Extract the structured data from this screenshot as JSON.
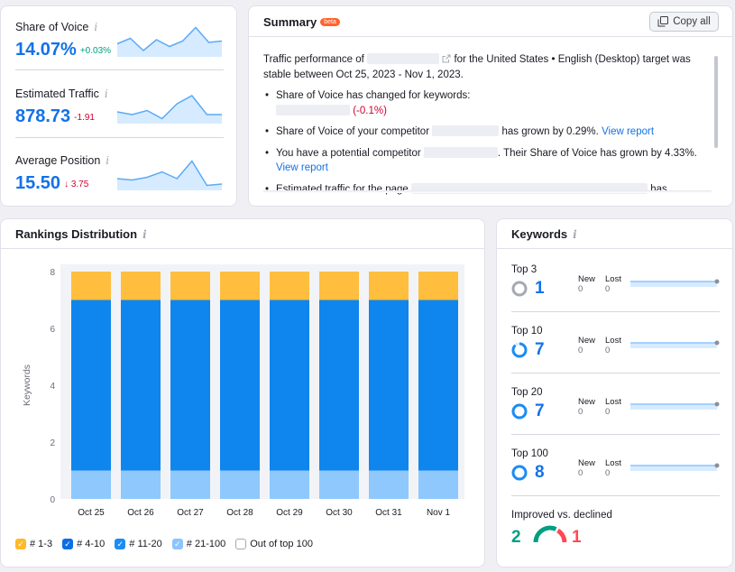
{
  "metrics": [
    {
      "label": "Share of Voice",
      "value": "14.07%",
      "delta": "+0.03%",
      "delta_color": "#009f81",
      "spark": [
        0.35,
        0.55,
        0.1,
        0.5,
        0.25,
        0.45,
        0.95,
        0.4,
        0.45
      ]
    },
    {
      "label": "Estimated Traffic",
      "value": "878.73",
      "delta": "-1.91",
      "delta_color": "#d1002f",
      "spark": [
        0.3,
        0.2,
        0.35,
        0.05,
        0.6,
        0.9,
        0.2,
        0.2
      ]
    },
    {
      "label": "Average Position",
      "value": "15.50",
      "delta": "↓ 3.75",
      "delta_color": "#d1002f",
      "spark": [
        0.3,
        0.25,
        0.35,
        0.55,
        0.3,
        0.95,
        0.05,
        0.1
      ]
    }
  ],
  "info_glyph": "i",
  "summary": {
    "title": "Summary",
    "badge": "beta",
    "copy_label": "Copy all",
    "intro_a": "Traffic performance of",
    "intro_b": "for the United States • English (Desktop) target was stable between Oct 25, 2023 - Nov 1, 2023.",
    "b1_text": "Share of Voice has changed for keywords:",
    "b1_delta": "(-0.1%)",
    "b2_a": "Share of Voice of your competitor",
    "b2_b": "has grown by 0.29%.",
    "b2_link": "View report",
    "b3_a": "You have a potential competitor",
    "b3_b": ". Their Share of Voice has grown by 4.33%.",
    "b3_link": "View report",
    "b4_a": "Estimated traffic for the page",
    "b4_b": "has"
  },
  "rankings": {
    "title": "Rankings Distribution",
    "legend": [
      {
        "label": "# 1-3",
        "color": "#ffb929",
        "checked": true
      },
      {
        "label": "# 4-10",
        "color": "#0a6fe4",
        "checked": true
      },
      {
        "label": "# 11-20",
        "color": "#1c8cf3",
        "checked": true
      },
      {
        "label": "# 21-100",
        "color": "#8dc4fd",
        "checked": true
      },
      {
        "label": "Out of top 100",
        "color": "#ffffff",
        "checked": false
      }
    ]
  },
  "chart_data": {
    "type": "bar",
    "stacked": true,
    "title": "Rankings Distribution",
    "xlabel": "",
    "ylabel": "Keywords",
    "ylim": [
      0,
      8
    ],
    "yticks": [
      0,
      2,
      4,
      6,
      8
    ],
    "categories": [
      "Oct 25",
      "Oct 26",
      "Oct 27",
      "Oct 28",
      "Oct 29",
      "Oct 30",
      "Oct 31",
      "Nov 1"
    ],
    "series": [
      {
        "name": "# 21-100",
        "color": "#8fc8fd",
        "values": [
          1,
          1,
          1,
          1,
          1,
          1,
          1,
          1
        ]
      },
      {
        "name": "# 11-20",
        "color": "#1c8cf3",
        "values": [
          0,
          0,
          0,
          0,
          0,
          0,
          0,
          0
        ]
      },
      {
        "name": "# 4-10",
        "color": "#0f85ee",
        "values": [
          6,
          6,
          6,
          6,
          6,
          6,
          6,
          6
        ]
      },
      {
        "name": "# 1-3",
        "color": "#ffbe3d",
        "values": [
          1,
          1,
          1,
          1,
          1,
          1,
          1,
          1
        ]
      }
    ]
  },
  "keywords": {
    "title": "Keywords",
    "new_label": "New",
    "lost_label": "Lost",
    "rows": [
      {
        "label": "Top 3",
        "value": "1",
        "new": "0",
        "lost": "0",
        "ring_color": "#a6a8b3",
        "ring_fill": 0.0
      },
      {
        "label": "Top 10",
        "value": "7",
        "new": "0",
        "lost": "0",
        "ring_color": "#1c8cf3",
        "ring_fill": 0.88
      },
      {
        "label": "Top 20",
        "value": "7",
        "new": "0",
        "lost": "0",
        "ring_color": "#1c8cf3",
        "ring_fill": 1.0
      },
      {
        "label": "Top 100",
        "value": "8",
        "new": "0",
        "lost": "0",
        "ring_color": "#1c8cf3",
        "ring_fill": 1.0
      }
    ],
    "improved_label": "Improved vs. declined",
    "improved": "2",
    "declined": "1"
  }
}
